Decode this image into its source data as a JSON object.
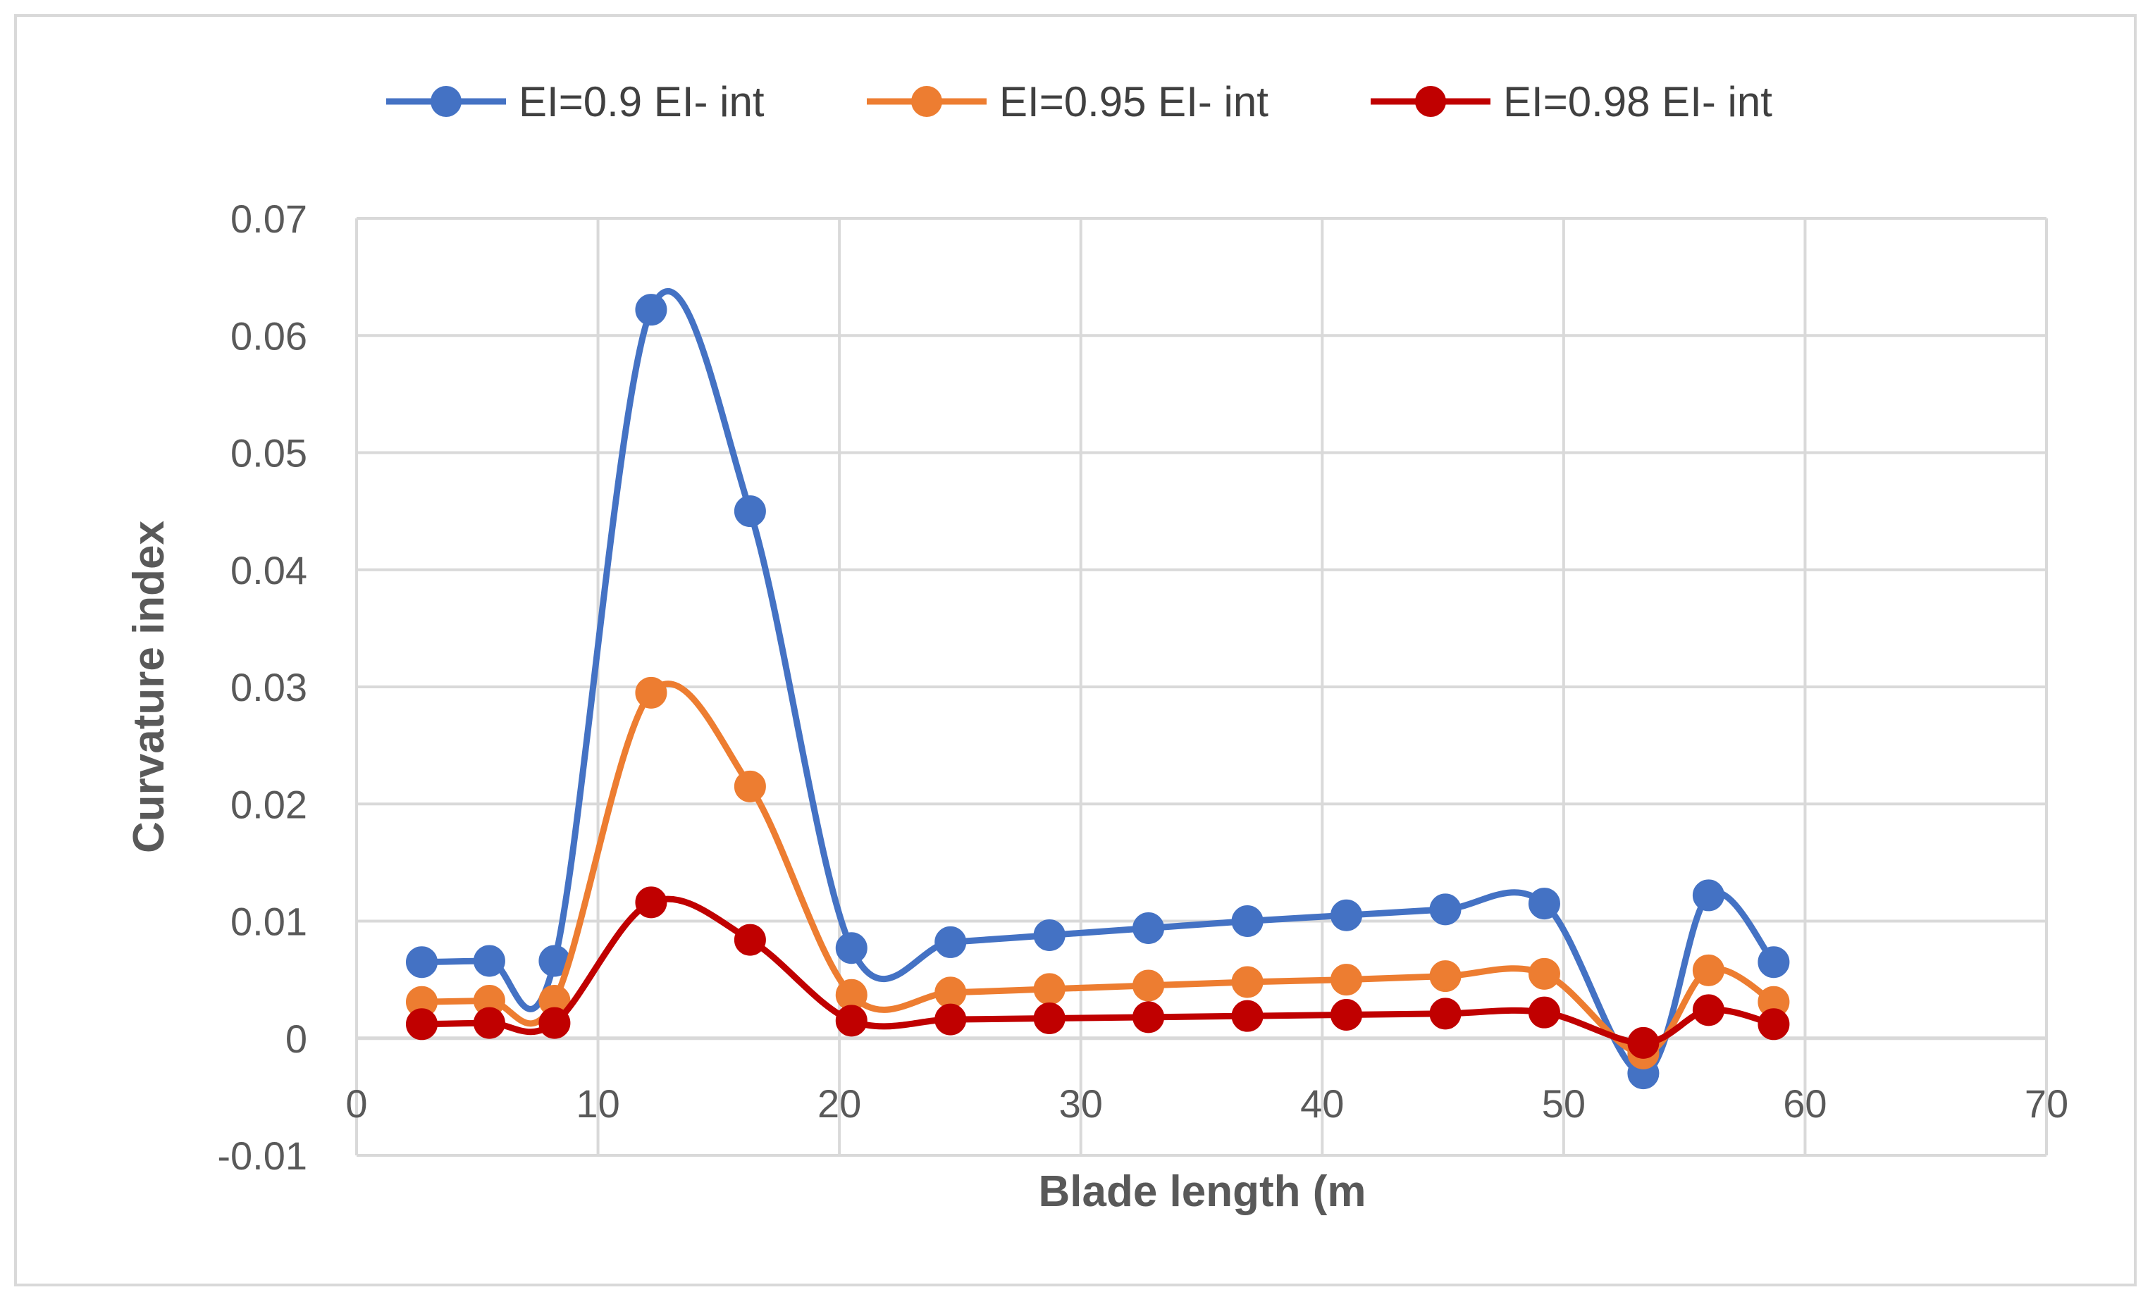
{
  "chart_data": {
    "type": "line",
    "smooth": true,
    "xlabel": "Blade length (m",
    "ylabel": "Curvature index",
    "xlim": [
      0,
      70
    ],
    "ylim": [
      -0.01,
      0.07
    ],
    "x_ticks": [
      0,
      10,
      20,
      30,
      40,
      50,
      60,
      70
    ],
    "y_ticks": [
      -0.01,
      0,
      0.01,
      0.02,
      0.03,
      0.04,
      0.05,
      0.06,
      0.07
    ],
    "x_tick_labels": [
      "0",
      "10",
      "20",
      "30",
      "40",
      "50",
      "60",
      "70"
    ],
    "y_tick_labels": [
      "-0.01",
      "0",
      "0.01",
      "0.02",
      "0.03",
      "0.04",
      "0.05",
      "0.06",
      "0.07"
    ],
    "grid": true,
    "legend_position": "top",
    "x": [
      2.7,
      5.5,
      8.2,
      12.2,
      16.3,
      20.5,
      24.6,
      28.7,
      32.8,
      36.9,
      41.0,
      45.1,
      49.2,
      53.3,
      56.0,
      58.7
    ],
    "series": [
      {
        "name": "EI=0.9 EI- int",
        "color": "#4472c4",
        "values": [
          0.0065,
          0.0066,
          0.0066,
          0.0622,
          0.045,
          0.0077,
          0.0082,
          0.0088,
          0.0094,
          0.01,
          0.0105,
          0.011,
          0.0115,
          -0.003,
          0.0122,
          0.0065
        ]
      },
      {
        "name": "EI=0.95 EI- int",
        "color": "#ed7d31",
        "values": [
          0.0031,
          0.0032,
          0.0032,
          0.0295,
          0.0215,
          0.0037,
          0.0039,
          0.0042,
          0.0045,
          0.0048,
          0.005,
          0.0053,
          0.0055,
          -0.0013,
          0.0058,
          0.0031
        ]
      },
      {
        "name": "EI=0.98 EI- int",
        "color": "#c00000",
        "values": [
          0.0012,
          0.0013,
          0.0013,
          0.0116,
          0.0084,
          0.0015,
          0.0016,
          0.0017,
          0.0018,
          0.0019,
          0.002,
          0.0021,
          0.0022,
          -0.0004,
          0.0024,
          0.0012
        ]
      }
    ]
  }
}
